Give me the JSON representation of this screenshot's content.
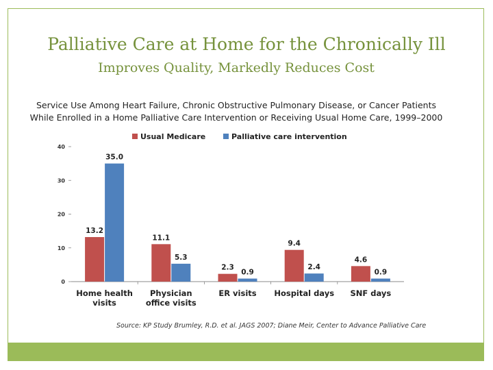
{
  "title": "Palliative Care at  Home for the Chronically Ill",
  "subtitle": "Improves Quality, Markedly Reduces Cost",
  "caption_line1": "Service Use Among Heart Failure, Chronic Obstructive Pulmonary Disease, or Cancer Patients",
  "caption_line2": "While Enrolled in a Home Palliative Care Intervention or Receiving Usual Home Care, 1999–2000",
  "source": "Source:  KP Study Brumley, R.D. et al. JAGS 2007; Diane Meir, Center to Advance Palliative Care",
  "colors": {
    "accent": "#9bbb59",
    "title": "#76923c",
    "usual_medicare": "#c0504d",
    "palliative": "#4f81bd"
  },
  "chart_data": {
    "type": "bar",
    "categories": [
      [
        "Home health",
        "visits"
      ],
      [
        "Physician",
        "office visits"
      ],
      [
        "ER visits"
      ],
      [
        "Hospital days"
      ],
      [
        "SNF days"
      ]
    ],
    "series": [
      {
        "name": "Usual Medicare",
        "values": [
          13.2,
          11.1,
          2.3,
          9.4,
          4.6
        ],
        "labels": [
          "13.2",
          "11.1",
          "2.3",
          "9.4",
          "4.6"
        ]
      },
      {
        "name": "Palliative care intervention",
        "values": [
          35.0,
          5.3,
          0.9,
          2.4,
          0.9
        ],
        "labels": [
          "35.0",
          "5.3",
          "0.9",
          "2.4",
          "0.9"
        ]
      }
    ],
    "yticks": [
      "0",
      "10",
      "20",
      "30",
      "40"
    ],
    "ylim": [
      0,
      40
    ],
    "legend": "top"
  }
}
